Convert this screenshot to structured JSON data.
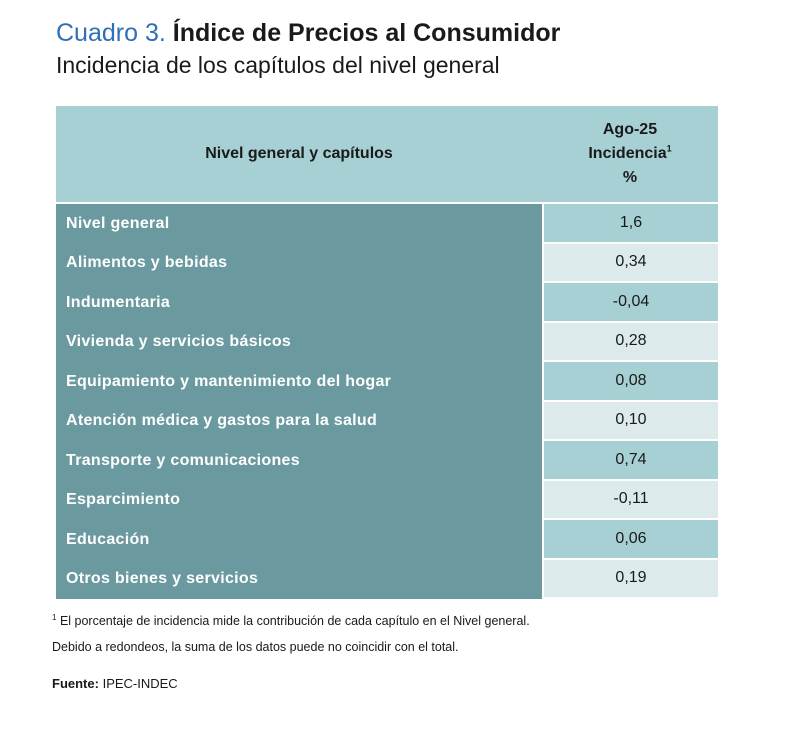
{
  "title": {
    "prefix": "Cuadro 3.",
    "main": "Índice de Precios al Consumidor",
    "subtitle": "Incidencia de los capítulos del nivel general"
  },
  "table": {
    "header": {
      "label_col": "Nivel general y capítulos",
      "value_col_line1": "Ago-25",
      "value_col_line2": "Incidencia",
      "value_col_sup": "1",
      "value_col_line3": "%"
    },
    "rows": [
      {
        "label": "Nivel general",
        "value": "1,6"
      },
      {
        "label": "Alimentos y bebidas",
        "value": "0,34"
      },
      {
        "label": "Indumentaria",
        "value": "-0,04"
      },
      {
        "label": "Vivienda y servicios básicos",
        "value": "0,28"
      },
      {
        "label": "Equipamiento y mantenimiento del hogar",
        "value": "0,08"
      },
      {
        "label": "Atención médica y gastos para la salud",
        "value": "0,10"
      },
      {
        "label": "Transporte y comunicaciones",
        "value": "0,74"
      },
      {
        "label": "Esparcimiento",
        "value": "-0,11"
      },
      {
        "label": "Educación",
        "value": "0,06"
      },
      {
        "label": "Otros bienes y servicios",
        "value": "0,19"
      }
    ]
  },
  "footnote": {
    "marker": "1",
    "line1": "El porcentaje de incidencia mide la contribución de cada capítulo en el Nivel general.",
    "line2": "Debido a redondeos, la suma de los datos puede no coincidir con el total."
  },
  "source": {
    "label": "Fuente:",
    "value": "IPEC-INDEC"
  },
  "colors": {
    "title_accent": "#2e6fb5",
    "header_bg": "#a6d0d3",
    "label_col_bg": "#6a9aa0",
    "value_odd_bg": "#a6d0d3",
    "value_even_bg": "#dceaeb"
  }
}
